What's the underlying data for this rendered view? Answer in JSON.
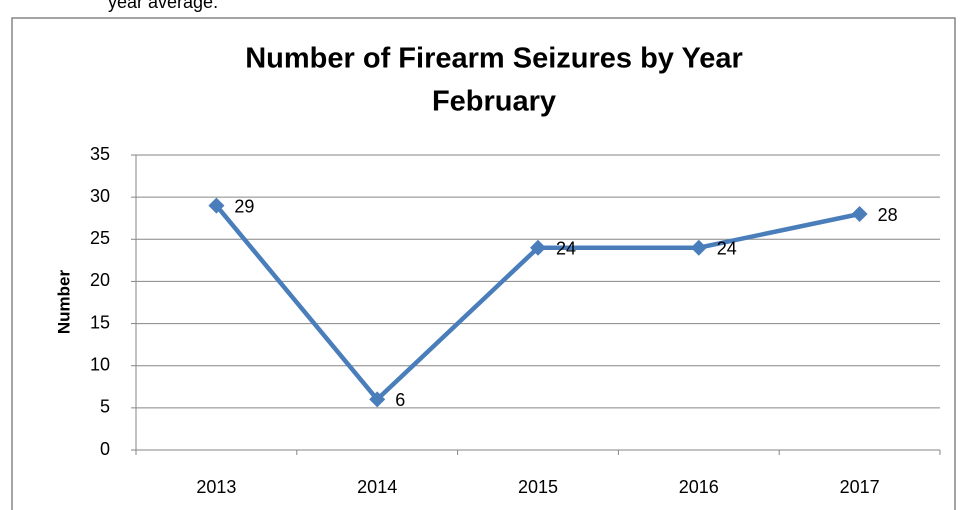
{
  "header_text": "year average.",
  "chart_data": {
    "type": "line",
    "title": "Number of Firearm Seizures by Year",
    "subtitle": "February",
    "y_label": "Number",
    "categories": [
      "2013",
      "2014",
      "2015",
      "2016",
      "2017"
    ],
    "series": [
      {
        "name": "Number",
        "color": "#4a7ebb",
        "values": [
          29,
          6,
          24,
          24,
          28
        ]
      }
    ],
    "ylim": [
      0,
      35
    ],
    "yticks": [
      0,
      5,
      10,
      15,
      20,
      25,
      30,
      35
    ],
    "grid": true,
    "data_labels": true
  }
}
